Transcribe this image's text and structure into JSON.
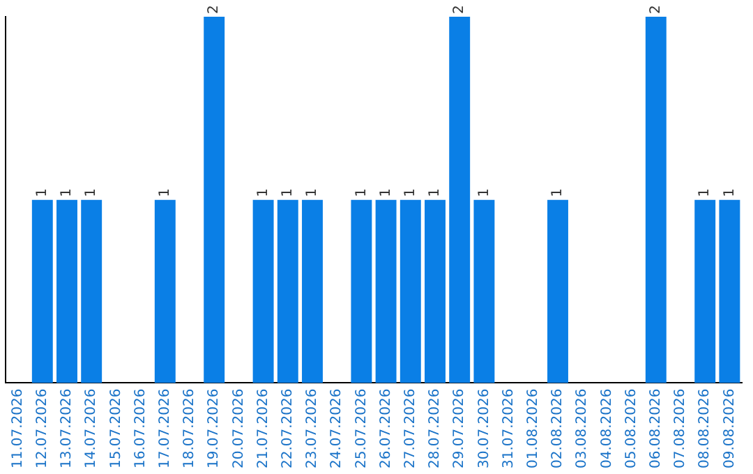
{
  "chart_data": {
    "type": "bar",
    "categories": [
      "11.07.2026",
      "12.07.2026",
      "13.07.2026",
      "14.07.2026",
      "15.07.2026",
      "16.07.2026",
      "17.07.2026",
      "18.07.2026",
      "19.07.2026",
      "20.07.2026",
      "21.07.2026",
      "22.07.2026",
      "23.07.2026",
      "24.07.2026",
      "25.07.2026",
      "26.07.2026",
      "27.07.2026",
      "28.07.2026",
      "29.07.2026",
      "30.07.2026",
      "31.07.2026",
      "01.08.2026",
      "02.08.2026",
      "03.08.2026",
      "04.08.2026",
      "05.08.2026",
      "06.08.2026",
      "07.08.2026",
      "08.08.2026",
      "09.08.2026"
    ],
    "values": [
      0,
      1,
      1,
      1,
      0,
      0,
      1,
      0,
      2,
      0,
      1,
      1,
      1,
      0,
      1,
      1,
      1,
      1,
      2,
      1,
      0,
      0,
      1,
      0,
      0,
      0,
      2,
      0,
      1,
      1
    ],
    "value_labels": [
      null,
      "1",
      "1",
      "1",
      null,
      null,
      "1",
      null,
      "2",
      null,
      "1",
      "1",
      "1",
      null,
      "1",
      "1",
      "1",
      "1",
      "2",
      "1",
      null,
      null,
      "1",
      null,
      null,
      null,
      "2",
      null,
      "1",
      "1"
    ],
    "color": "#0a7fe6",
    "ylim": [
      0,
      2
    ],
    "tick_labels": "x",
    "grid": false,
    "legend": false
  }
}
